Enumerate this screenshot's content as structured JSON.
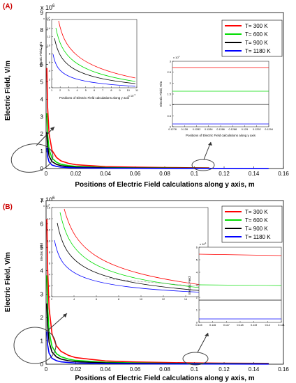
{
  "panels": [
    {
      "label": "(A)",
      "xlabel": "Positions of Electric Field calculations along y axis, m",
      "ylabel": "Electric Field, V/m",
      "exponent": "x 10",
      "exponent_power": "6",
      "xticks": [
        "0",
        "0.02",
        "0.04",
        "0.06",
        "0.08",
        "0.1",
        "0.12",
        "0.14",
        "0.16"
      ],
      "yticks": [
        "0",
        "1",
        "2",
        "3",
        "4",
        "5",
        "6",
        "7",
        "8",
        "9"
      ],
      "legend": [
        "T= 300 K",
        "T= 600 K",
        "T= 900 K",
        "T= 1180 K"
      ],
      "inset1": {
        "ylabel": "Electric Field, V/m",
        "xlabel": "Positions of Electric Field calculations along y axis",
        "yticks": [
          "0",
          "2",
          "4",
          "6",
          "8",
          "10",
          "12",
          "14",
          "16"
        ],
        "xticks": [
          "1",
          "2",
          "3",
          "4",
          "5",
          "6",
          "7",
          "8",
          "9",
          "10",
          "11"
        ],
        "yexp": "x 10",
        "yexp_power": "5",
        "xexp": "x 10",
        "xexp_power": "-3"
      },
      "inset2": {
        "ylabel": "Electric Field, V/m",
        "xlabel": "Positions of Electric Field calculations along y axis",
        "yticks": [
          "0",
          "0.5",
          "1",
          "1.5",
          "2",
          "2.5",
          "3"
        ],
        "xticks": [
          "0.1278",
          "0.128",
          "0.1282",
          "0.1284",
          "0.1286",
          "0.1288",
          "0.129",
          "0.1292",
          "0.1294"
        ],
        "yexp": "x 10",
        "yexp_power": "4"
      }
    },
    {
      "label": "(B)",
      "xlabel": "Positions of Electric Field calculations along y axis, m",
      "ylabel": "Electric Field, V/m",
      "exponent": "x 10",
      "exponent_power": "6",
      "xticks": [
        "0",
        "0.02",
        "0.04",
        "0.06",
        "0.08",
        "0.1",
        "0.12",
        "0.14",
        "0.16"
      ],
      "yticks": [
        "0",
        "1",
        "2",
        "3",
        "4",
        "5",
        "6",
        "7"
      ],
      "legend": [
        "T= 300 K",
        "T= 600 K",
        "T= 900 K",
        "T= 1180 K"
      ],
      "inset1": {
        "ylabel": "Electric Field",
        "xlabel": "",
        "yticks": [
          "0",
          "2",
          "4",
          "6",
          "8",
          "10",
          "12",
          "14",
          "16"
        ],
        "xticks": [
          "2",
          "4",
          "6",
          "8",
          "10",
          "12",
          "14",
          "16"
        ],
        "yexp": "x 10",
        "yexp_power": "5",
        "xexp": "x 10",
        "xexp_power": "-3"
      },
      "inset2": {
        "ylabel": "Electric Field",
        "xlabel": "",
        "yticks": [
          "0",
          "1",
          "2",
          "3",
          "4",
          "5",
          "6"
        ],
        "xticks": [
          "0.115",
          "0.116",
          "0.117",
          "0.118",
          "0.119",
          "0.12",
          "0.121"
        ],
        "yexp": "x 10",
        "yexp_power": "4"
      }
    }
  ],
  "colors": {
    "T300": "#ff0000",
    "T600": "#00dd00",
    "T900": "#000000",
    "T1180": "#0000ff",
    "label": "#cc0000"
  },
  "chart_data": [
    {
      "type": "line",
      "panel": "A",
      "xlim": [
        0,
        0.16
      ],
      "ylim": [
        0,
        9000000
      ],
      "series": [
        {
          "name": "T= 300 K",
          "xmax": 0.11,
          "x": [
            0.0005,
            0.001,
            0.002,
            0.004,
            0.007,
            0.01,
            0.015,
            0.02,
            0.04,
            0.06,
            0.08,
            0.1,
            0.11
          ],
          "y": [
            5800000,
            3600000,
            2000000,
            1050000,
            640000,
            440000,
            300000,
            220000,
            110000,
            75000,
            56000,
            45000,
            40000
          ]
        },
        {
          "name": "T= 600 K",
          "xmax": 0.11,
          "x": [
            0.0005,
            0.001,
            0.002,
            0.004,
            0.007,
            0.01,
            0.015,
            0.02,
            0.04,
            0.06,
            0.08,
            0.1,
            0.11
          ],
          "y": [
            3200000,
            2000000,
            1100000,
            600000,
            360000,
            250000,
            170000,
            125000,
            62000,
            42000,
            32000,
            25000,
            22000
          ]
        },
        {
          "name": "T= 900 K",
          "xmax": 0.11,
          "x": [
            0.0005,
            0.001,
            0.002,
            0.004,
            0.007,
            0.01,
            0.015,
            0.02,
            0.04,
            0.06,
            0.08,
            0.1,
            0.11
          ],
          "y": [
            2100000,
            1300000,
            720000,
            400000,
            240000,
            165000,
            110000,
            82000,
            41000,
            28000,
            21000,
            16000,
            14000
          ]
        },
        {
          "name": "T= 1180 K",
          "xmax": 0.15,
          "x": [
            0.0005,
            0.001,
            0.002,
            0.004,
            0.007,
            0.01,
            0.015,
            0.02,
            0.04,
            0.06,
            0.08,
            0.1,
            0.12,
            0.15
          ],
          "y": [
            1200000,
            700000,
            380000,
            200000,
            120000,
            80000,
            55000,
            40000,
            20000,
            13000,
            10000,
            8000,
            6500,
            5000
          ]
        }
      ]
    },
    {
      "type": "line",
      "panel": "B",
      "xlim": [
        0,
        0.16
      ],
      "ylim": [
        0,
        7000000
      ],
      "series": [
        {
          "name": "T= 300 K",
          "xmax": 0.15,
          "x": [
            0.0005,
            0.001,
            0.002,
            0.004,
            0.007,
            0.01,
            0.015,
            0.02,
            0.04,
            0.06,
            0.08,
            0.1,
            0.12,
            0.15
          ],
          "y": [
            6200000,
            4200000,
            2400000,
            1300000,
            780000,
            550000,
            380000,
            280000,
            140000,
            95000,
            70000,
            55000,
            46000,
            37000
          ]
        },
        {
          "name": "T= 600 K",
          "xmax": 0.15,
          "x": [
            0.0005,
            0.001,
            0.002,
            0.004,
            0.007,
            0.01,
            0.015,
            0.02,
            0.04,
            0.06,
            0.08,
            0.1,
            0.12,
            0.15
          ],
          "y": [
            3800000,
            2500000,
            1400000,
            760000,
            450000,
            320000,
            220000,
            160000,
            80000,
            54000,
            40000,
            32000,
            27000,
            21000
          ]
        },
        {
          "name": "T= 900 K",
          "xmax": 0.15,
          "x": [
            0.0005,
            0.001,
            0.002,
            0.004,
            0.007,
            0.01,
            0.015,
            0.02,
            0.04,
            0.06,
            0.08,
            0.1,
            0.12,
            0.15
          ],
          "y": [
            2600000,
            1700000,
            950000,
            520000,
            310000,
            220000,
            150000,
            110000,
            55000,
            37000,
            28000,
            22000,
            18000,
            14000
          ]
        },
        {
          "name": "T= 1180 K",
          "xmax": 0.15,
          "x": [
            0.0005,
            0.001,
            0.002,
            0.004,
            0.007,
            0.01,
            0.015,
            0.02,
            0.04,
            0.06,
            0.08,
            0.1,
            0.12,
            0.15
          ],
          "y": [
            1400000,
            850000,
            470000,
            250000,
            150000,
            100000,
            70000,
            50000,
            25000,
            17000,
            12500,
            10000,
            8500,
            7000
          ]
        }
      ]
    }
  ]
}
